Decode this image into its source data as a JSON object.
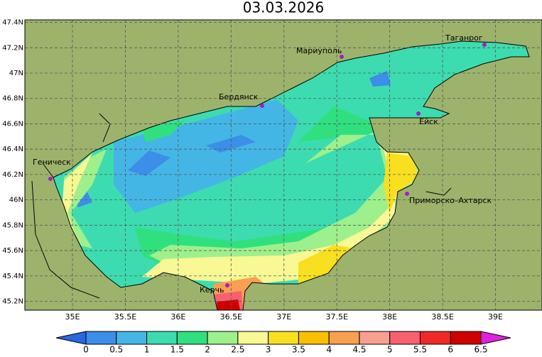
{
  "title": "03.03.2026",
  "map": {
    "lon_range": [
      34.55,
      39.44
    ],
    "lat_range": [
      45.13,
      47.42
    ],
    "lon_ticks": [
      {
        "value": 35,
        "label": "35E"
      },
      {
        "value": 35.5,
        "label": "35.5E"
      },
      {
        "value": 36,
        "label": "36E"
      },
      {
        "value": 36.5,
        "label": "36.5E"
      },
      {
        "value": 37,
        "label": "37E"
      },
      {
        "value": 37.5,
        "label": "37.5E"
      },
      {
        "value": 38,
        "label": "38E"
      },
      {
        "value": 38.5,
        "label": "38.5E"
      },
      {
        "value": 39,
        "label": "39E"
      }
    ],
    "lat_ticks": [
      {
        "value": 45.2,
        "label": "45.2N"
      },
      {
        "value": 45.4,
        "label": "45.4N"
      },
      {
        "value": 45.6,
        "label": "45.6N"
      },
      {
        "value": 45.8,
        "label": "45.8N"
      },
      {
        "value": 46,
        "label": "46N"
      },
      {
        "value": 46.2,
        "label": "46.2N"
      },
      {
        "value": 46.4,
        "label": "46.4N"
      },
      {
        "value": 46.6,
        "label": "46.6N"
      },
      {
        "value": 46.8,
        "label": "46.8N"
      },
      {
        "value": 47,
        "label": "47N"
      },
      {
        "value": 47.2,
        "label": "47.2N"
      },
      {
        "value": 47.4,
        "label": "47.4N"
      }
    ],
    "cities": [
      "Геническ",
      "Бердянск",
      "Мариуполь",
      "Таганрог",
      "Ейск",
      "Приморско–Ахтарск",
      "Керчь"
    ]
  },
  "colorbar": {
    "ticks": [
      0,
      0.5,
      1,
      1.5,
      2,
      2.5,
      3,
      3.5,
      4,
      4.5,
      5,
      5.5,
      6,
      6.5
    ],
    "colors": [
      "#2a66e0",
      "#3c8ee8",
      "#44b6e6",
      "#3cdcb0",
      "#30e07e",
      "#9ef08c",
      "#f8f894",
      "#f8e020",
      "#f8c000",
      "#f8a050",
      "#f8a090",
      "#f86070",
      "#f02828",
      "#d00000",
      "#e020e0"
    ]
  }
}
